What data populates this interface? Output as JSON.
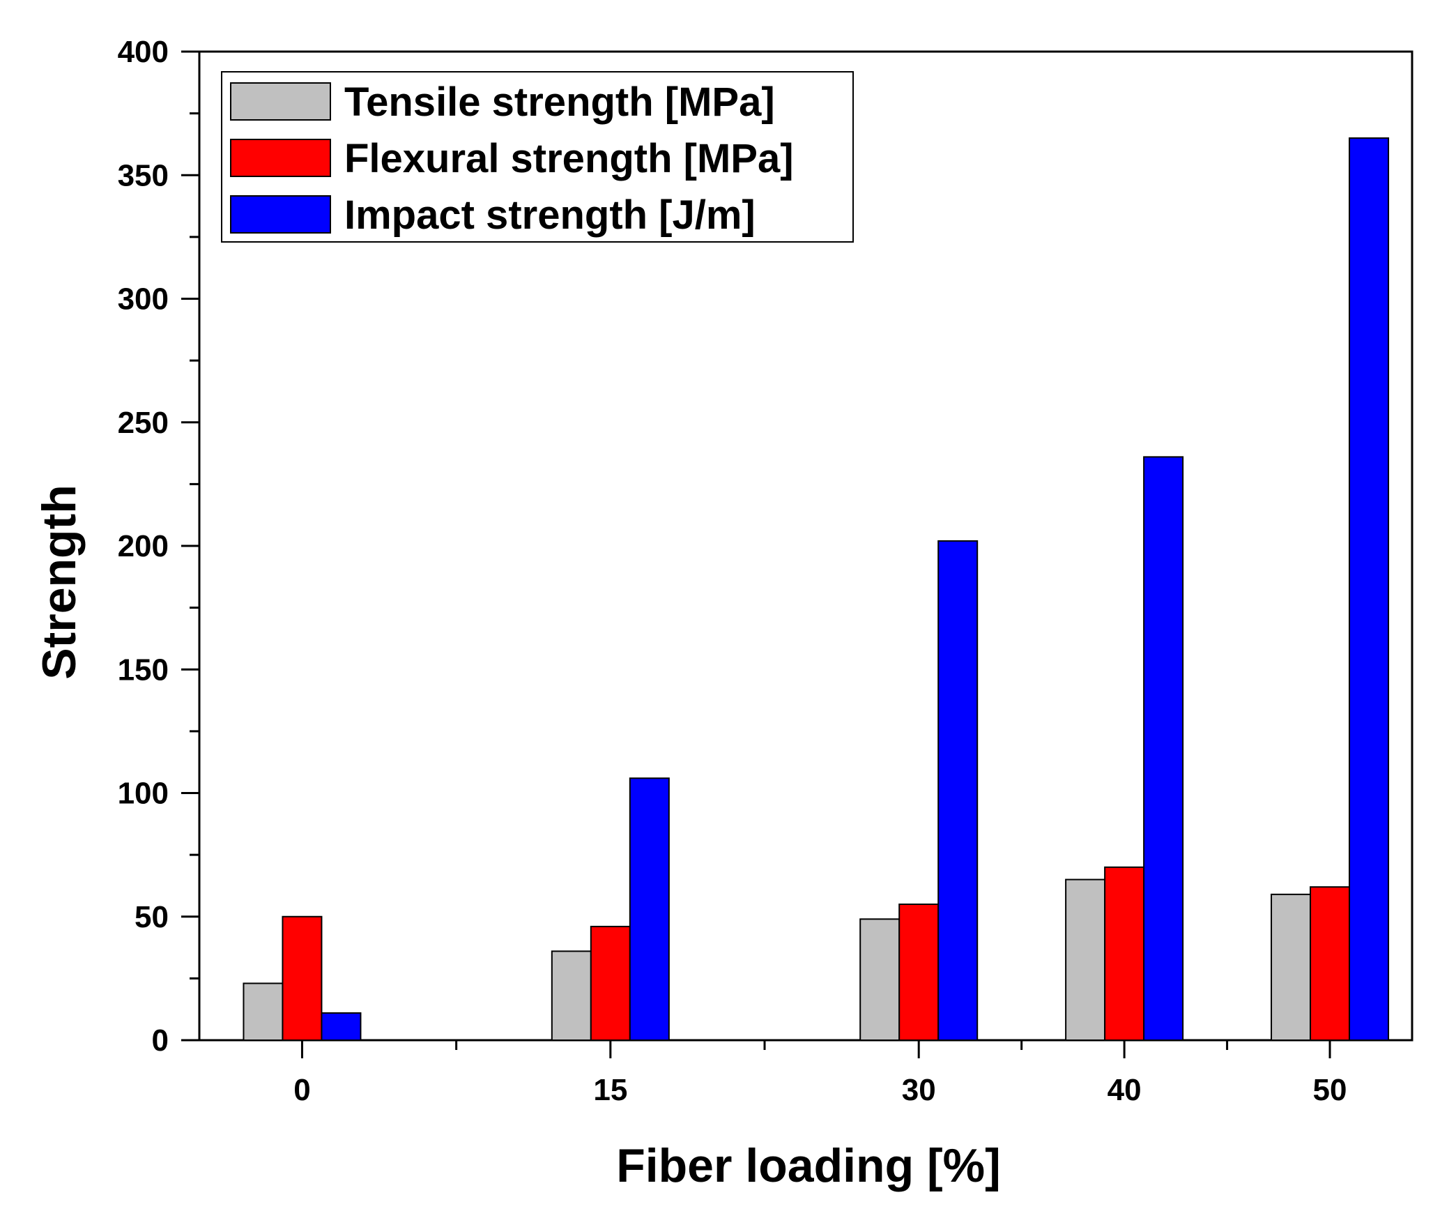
{
  "chart_data": {
    "type": "bar",
    "title": "",
    "xlabel": "Fiber loading [%]",
    "ylabel": "Strength",
    "categories": [
      "0",
      "15",
      "30",
      "40",
      "50"
    ],
    "x_positions": [
      0,
      15,
      30,
      40,
      50
    ],
    "xlim": [
      -5,
      54
    ],
    "ylim": [
      0,
      400
    ],
    "yticks": [
      0,
      50,
      100,
      150,
      200,
      250,
      300,
      350,
      400
    ],
    "grid": false,
    "legend_position": "top-left",
    "series": [
      {
        "name": "Tensile strength [MPa]",
        "color": "#c0c0c0",
        "values": [
          23,
          36,
          49,
          65,
          59
        ]
      },
      {
        "name": "Flexural strength [MPa]",
        "color": "#ff0000",
        "values": [
          50,
          46,
          55,
          70,
          62
        ]
      },
      {
        "name": "Impact strength [J/m]",
        "color": "#0000ff",
        "values": [
          11,
          106,
          202,
          236,
          365
        ]
      }
    ]
  }
}
